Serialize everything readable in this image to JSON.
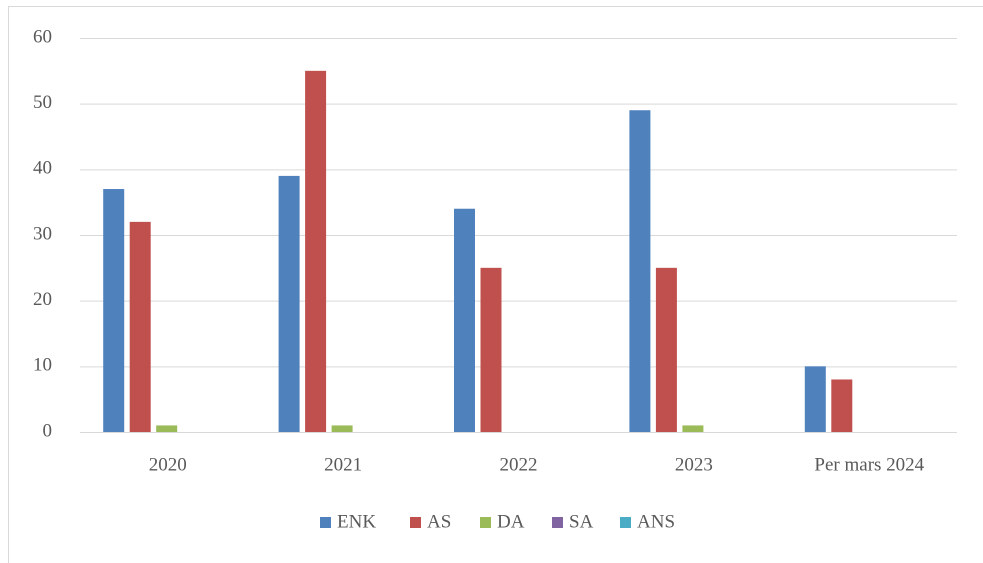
{
  "chart_data": {
    "type": "bar",
    "categories": [
      "2020",
      "2021",
      "2022",
      "2023",
      "Per mars 2024"
    ],
    "series": [
      {
        "name": "ENK",
        "color": "#4f81bd",
        "values": [
          37,
          39,
          34,
          49,
          10
        ]
      },
      {
        "name": "AS",
        "color": "#c0504d",
        "values": [
          32,
          55,
          25,
          25,
          8
        ]
      },
      {
        "name": "DA",
        "color": "#9bbb59",
        "values": [
          1,
          1,
          0,
          1,
          0
        ]
      },
      {
        "name": "SA",
        "color": "#8064a2",
        "values": [
          0,
          0,
          0,
          0,
          0
        ]
      },
      {
        "name": "ANS",
        "color": "#4bacc6",
        "values": [
          0,
          0,
          0,
          0,
          0
        ]
      }
    ],
    "ylim": [
      0,
      60
    ],
    "yticks": [
      0,
      10,
      20,
      30,
      40,
      50,
      60
    ],
    "grid": true,
    "legend": "bottom"
  }
}
